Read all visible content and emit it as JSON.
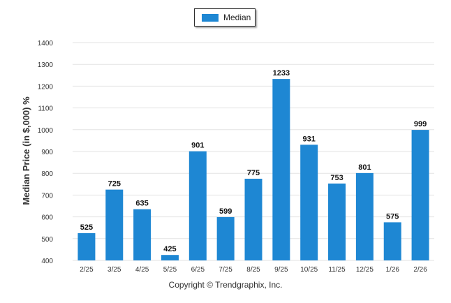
{
  "legend": {
    "label": "Median",
    "color": "#1e87d3"
  },
  "copyright": "Copyright © Trendgraphix, Inc.",
  "chart_data": {
    "type": "bar",
    "categories": [
      "2/25",
      "3/25",
      "4/25",
      "5/25",
      "6/25",
      "7/25",
      "8/25",
      "9/25",
      "10/25",
      "11/25",
      "12/25",
      "1/26",
      "2/26"
    ],
    "series": [
      {
        "name": "Median",
        "values": [
          525,
          725,
          635,
          425,
          901,
          599,
          775,
          1233,
          931,
          753,
          801,
          575,
          999
        ]
      }
    ],
    "title": "",
    "xlabel": "",
    "ylabel": "Median Price (in $,000) %",
    "ylim": [
      400,
      1400
    ],
    "yticks": [
      400,
      500,
      600,
      700,
      800,
      900,
      1000,
      1100,
      1200,
      1300,
      1400
    ],
    "grid": true,
    "legend_position": "top-center",
    "bar_color": "#1e87d3",
    "data_labels": true
  }
}
